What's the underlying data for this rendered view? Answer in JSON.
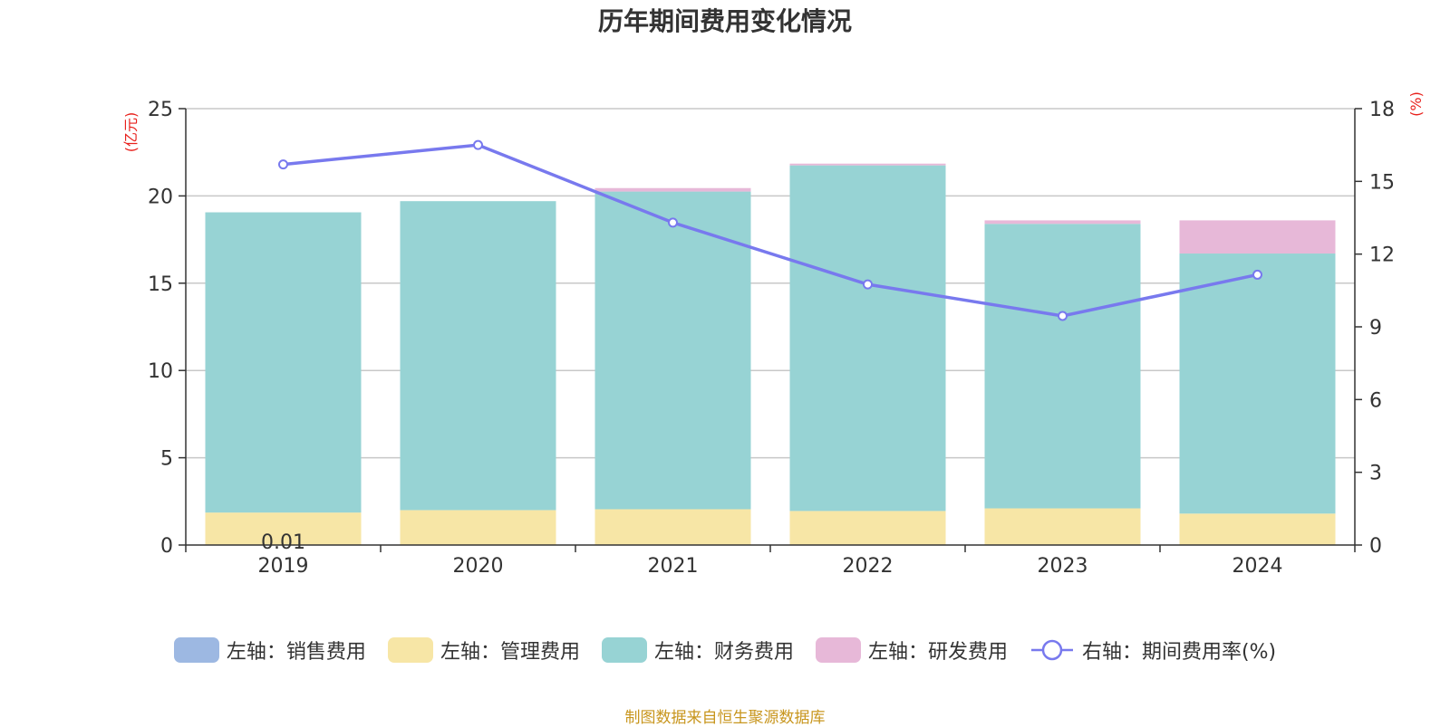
{
  "chart_data": {
    "type": "bar",
    "title": "历年期间费用变化情况",
    "categories": [
      "2019",
      "2020",
      "2021",
      "2022",
      "2023",
      "2024"
    ],
    "left_axis": {
      "unit": "(亿元)",
      "ylim": [
        0,
        25
      ],
      "ticks": [
        "0",
        "5",
        "10",
        "15",
        "20",
        "25"
      ]
    },
    "right_axis": {
      "unit": "(%)",
      "ylim": [
        0,
        18
      ],
      "ticks": [
        "0",
        "3",
        "6",
        "9",
        "12",
        "15",
        "18"
      ]
    },
    "series": [
      {
        "name": "左轴：销售费用",
        "type": "bar",
        "stack": "left",
        "color": "#9db8e2",
        "values": [
          0.01,
          0,
          0,
          0,
          0,
          0
        ]
      },
      {
        "name": "左轴：管理费用",
        "type": "bar",
        "stack": "left",
        "color": "#f7e6a6",
        "values": [
          1.85,
          2.0,
          2.05,
          1.95,
          2.1,
          1.8
        ]
      },
      {
        "name": "左轴：财务费用",
        "type": "bar",
        "stack": "left",
        "color": "#97d3d4",
        "values": [
          17.2,
          17.7,
          18.2,
          19.8,
          16.3,
          14.9
        ]
      },
      {
        "name": "左轴：研发费用",
        "type": "bar",
        "stack": "left",
        "color": "#e7b8d8",
        "values": [
          0,
          0,
          0.2,
          0.1,
          0.2,
          1.9
        ]
      },
      {
        "name": "右轴：期间费用率(%)",
        "type": "line",
        "axis": "right",
        "color": "#7879ee",
        "values": [
          15.7,
          16.5,
          13.3,
          10.75,
          9.45,
          11.15
        ]
      }
    ],
    "data_labels": [
      {
        "category": "2019",
        "text": "0.01"
      }
    ],
    "grid": true,
    "legend_position": "bottom",
    "source": "制图数据来自恒生聚源数据库"
  }
}
